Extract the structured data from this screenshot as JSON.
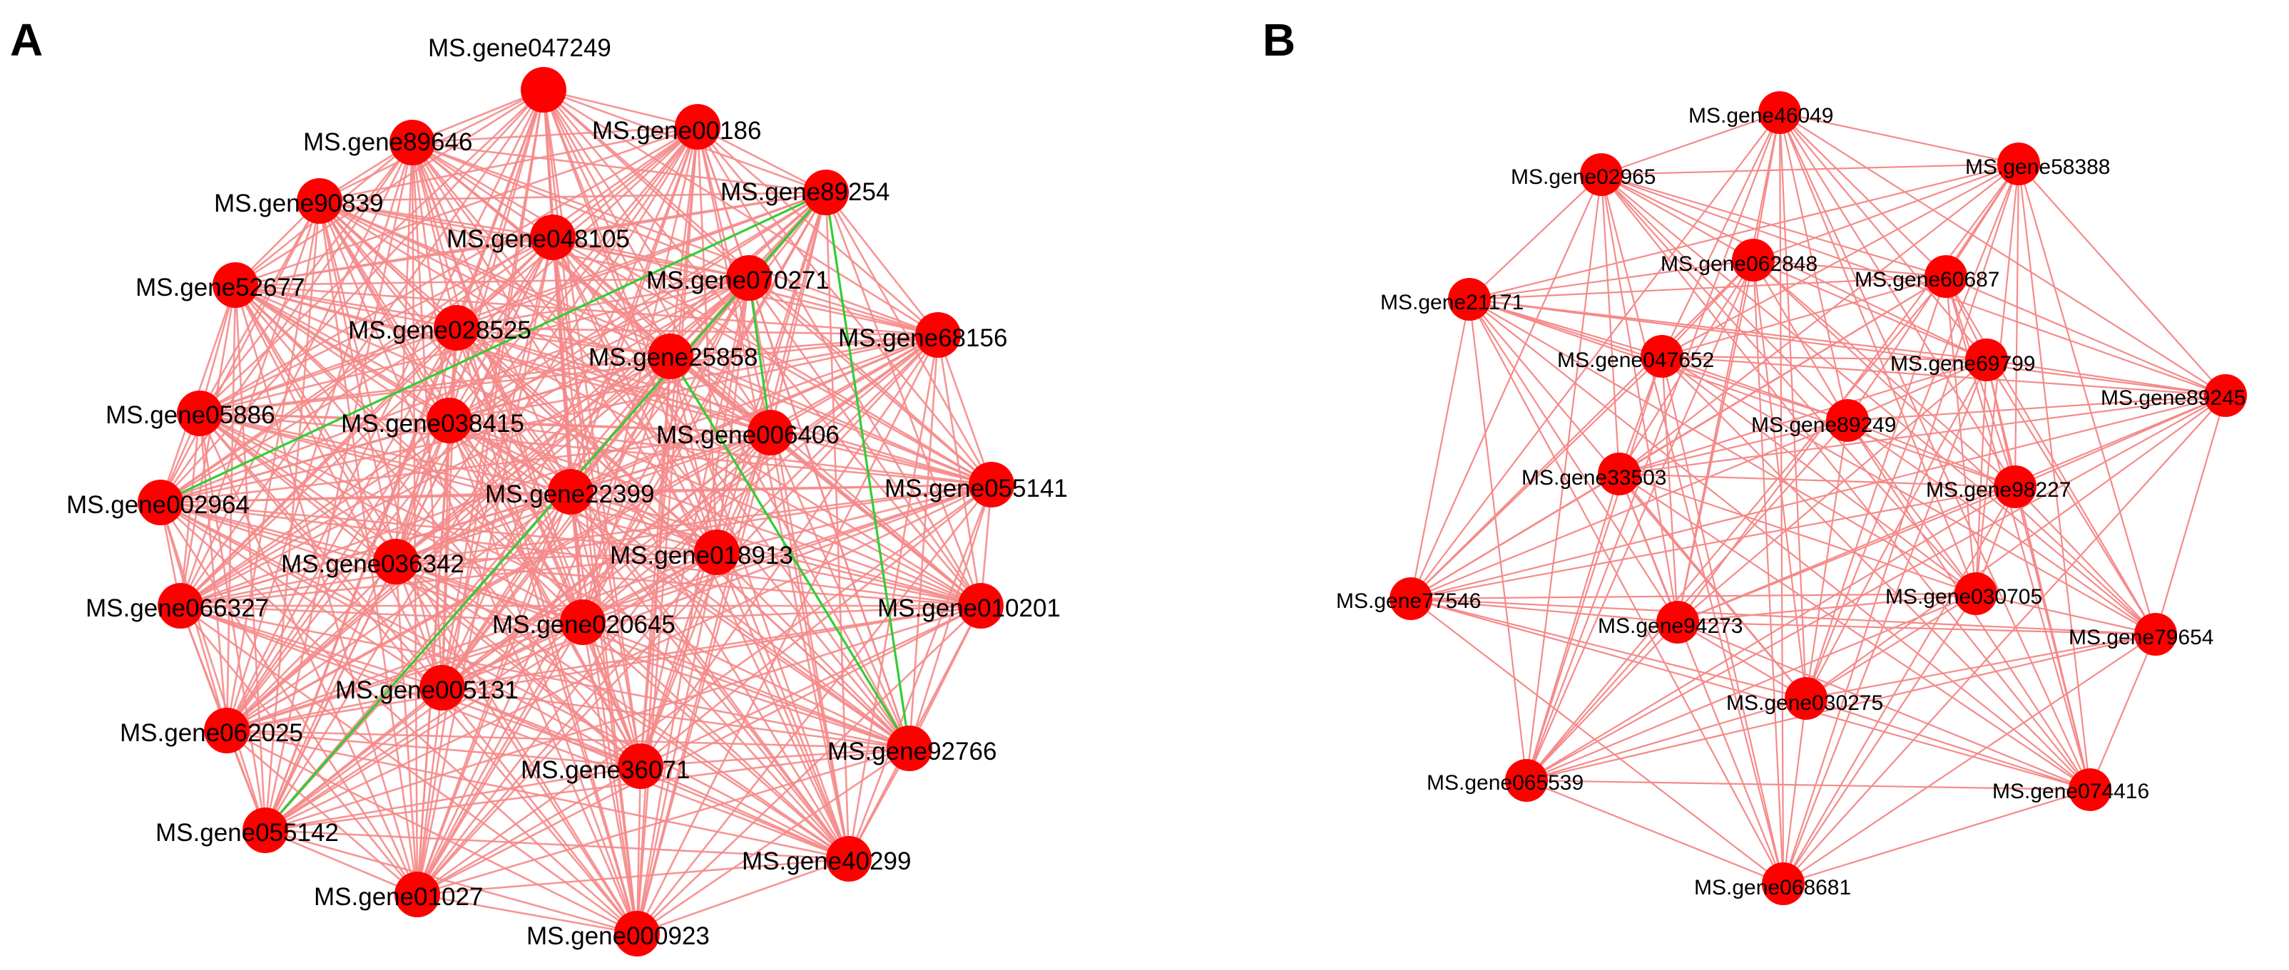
{
  "colors": {
    "node": "#ff0000",
    "edge_positive": "#f58a8a",
    "edge_negative": "#33cc33",
    "label": "#000000"
  },
  "panels": [
    {
      "id": "A",
      "letter": "A",
      "nodes": [
        "MS.gene047249",
        "MS.gene00186",
        "MS.gene89646",
        "MS.gene90839",
        "MS.gene89254",
        "MS.gene048105",
        "MS.gene070271",
        "MS.gene52677",
        "MS.gene028525",
        "MS.gene68156",
        "MS.gene25858",
        "MS.gene05886",
        "MS.gene038415",
        "MS.gene006406",
        "MS.gene002964",
        "MS.gene22399",
        "MS.gene055141",
        "MS.gene036342",
        "MS.gene018913",
        "MS.gene066327",
        "MS.gene020645",
        "MS.gene010201",
        "MS.gene005131",
        "MS.gene062025",
        "MS.gene36071",
        "MS.gene92766",
        "MS.gene055142",
        "MS.gene40299",
        "MS.gene01027",
        "MS.gene000923"
      ],
      "negative_edges": [
        [
          "MS.gene89254",
          "MS.gene002964"
        ],
        [
          "MS.gene89254",
          "MS.gene055142"
        ],
        [
          "MS.gene89254",
          "MS.gene92766"
        ],
        [
          "MS.gene070271",
          "MS.gene006406"
        ],
        [
          "MS.gene25858",
          "MS.gene92766"
        ]
      ]
    },
    {
      "id": "B",
      "letter": "B",
      "nodes": [
        "MS.gene46049",
        "MS.gene02965",
        "MS.gene58388",
        "MS.gene062848",
        "MS.gene60687",
        "MS.gene21171",
        "MS.gene047652",
        "MS.gene69799",
        "MS.gene89245",
        "MS.gene89249",
        "MS.gene33503",
        "MS.gene98227",
        "MS.gene77546",
        "MS.gene030705",
        "MS.gene94273",
        "MS.gene79654",
        "MS.gene030275",
        "MS.gene065539",
        "MS.gene074416",
        "MS.gene068681"
      ]
    }
  ]
}
